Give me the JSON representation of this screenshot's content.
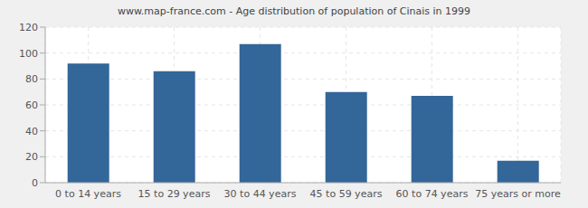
{
  "chart_data": {
    "type": "bar",
    "title": "www.map-france.com - Age distribution of population of Cinais in 1999",
    "categories": [
      "0 to 14 years",
      "15 to 29 years",
      "30 to 44 years",
      "45 to 59 years",
      "60 to 74 years",
      "75 years or more"
    ],
    "values": [
      92,
      86,
      107,
      70,
      67,
      17
    ],
    "color": "#336699",
    "ylim": [
      0,
      120
    ],
    "yticks": [
      0,
      20,
      40,
      60,
      80,
      100,
      120
    ],
    "grid": true
  }
}
